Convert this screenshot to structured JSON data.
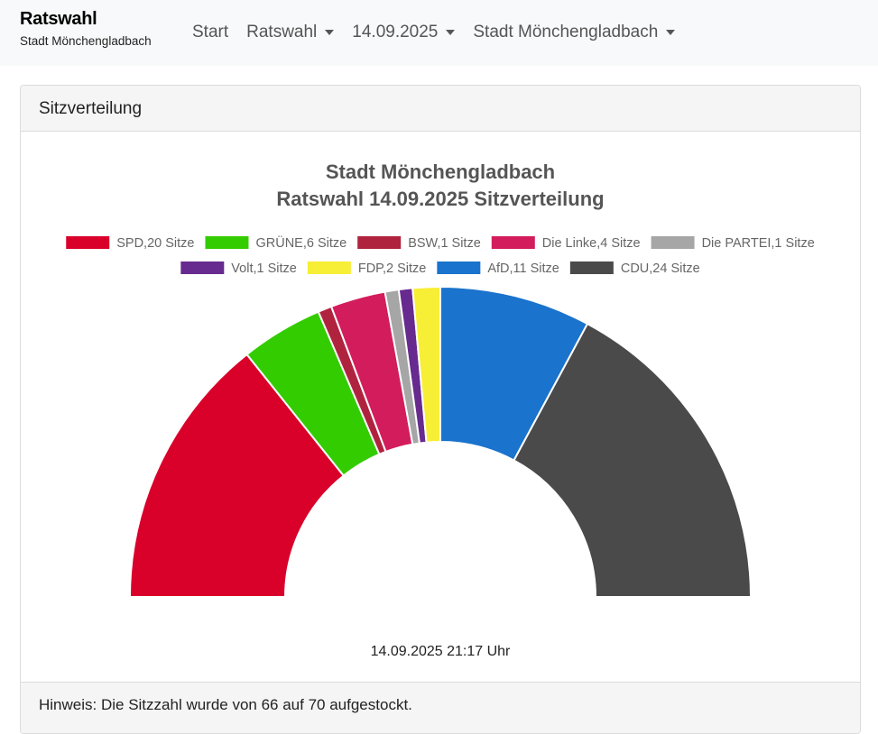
{
  "brand": {
    "title": "Ratswahl",
    "subtitle": "Stadt Mönchengladbach"
  },
  "nav": [
    {
      "label": "Start",
      "dropdown": false
    },
    {
      "label": "Ratswahl",
      "dropdown": true
    },
    {
      "label": "14.09.2025",
      "dropdown": true
    },
    {
      "label": "Stadt Mönchengladbach",
      "dropdown": true
    }
  ],
  "card": {
    "header": "Sitzverteilung",
    "footer": "Hinweis: Die Sitzzahl wurde von 66 auf 70 aufgestockt."
  },
  "chart_data": {
    "type": "pie",
    "variant": "half-donut (parliament)",
    "title": [
      "Stadt Mönchengladbach",
      "Ratswahl 14.09.2025 Sitzverteilung"
    ],
    "timestamp": "14.09.2025 21:17 Uhr",
    "total": 70,
    "legend_position": "top",
    "series": [
      {
        "name": "SPD",
        "value": 20,
        "label": "SPD,20 Sitze",
        "color": "#d9002a"
      },
      {
        "name": "GRÜNE",
        "value": 6,
        "label": "GRÜNE,6 Sitze",
        "color": "#33cc00"
      },
      {
        "name": "BSW",
        "value": 1,
        "label": "BSW,1 Sitze",
        "color": "#b0233f"
      },
      {
        "name": "Die Linke",
        "value": 4,
        "label": "Die Linke,4 Sitze",
        "color": "#d31c5c"
      },
      {
        "name": "Die PARTEI",
        "value": 1,
        "label": "Die PARTEI,1 Sitze",
        "color": "#a6a6a6"
      },
      {
        "name": "Volt",
        "value": 1,
        "label": "Volt,1 Sitze",
        "color": "#672a8e"
      },
      {
        "name": "FDP",
        "value": 2,
        "label": "FDP,2 Sitze",
        "color": "#f7ee36"
      },
      {
        "name": "AfD",
        "value": 11,
        "label": "AfD,11 Sitze",
        "color": "#1a73cc"
      },
      {
        "name": "CDU",
        "value": 24,
        "label": "CDU,24 Sitze",
        "color": "#4a4a4a"
      }
    ]
  }
}
